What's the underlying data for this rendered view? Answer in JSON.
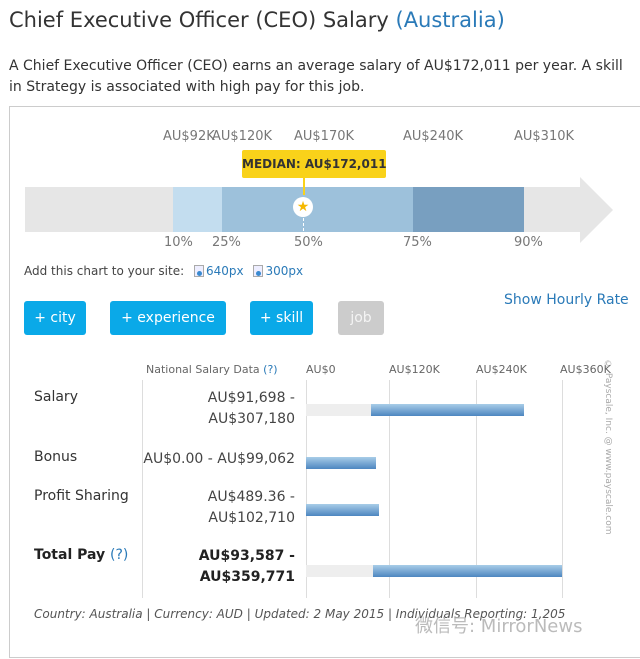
{
  "title": {
    "text": "Chief Executive Officer (CEO) Salary",
    "location": "(Australia)"
  },
  "intro": "A Chief Executive Officer (CEO) earns an average salary of AU$172,011 per year. A skill in Strategy is associated with high pay for this job.",
  "percentile_chart": {
    "top_labels": [
      "AU$92K",
      "AU$120K",
      "AU$170K",
      "AU$240K",
      "AU$310K"
    ],
    "percent_labels": [
      "10%",
      "25%",
      "50%",
      "75%",
      "90%"
    ],
    "median_label": "MEDIAN: AU$172,011",
    "colors": {
      "p10_25": "#c3ddef",
      "p25_75": "#9dc1db",
      "p75_90": "#789fc0",
      "track": "#e6e6e6",
      "median": "#f9d21a"
    }
  },
  "embed": {
    "label": "Add this chart to your site:",
    "links": [
      "640px",
      "300px"
    ]
  },
  "filters": [
    "+ city",
    "+ experience",
    "+ skill",
    "job"
  ],
  "show_hourly": "Show Hourly Rate",
  "table": {
    "header": "National Salary Data",
    "help": "(?)",
    "axis": [
      "AU$0",
      "AU$120K",
      "AU$240K",
      "AU$360K"
    ],
    "rows": [
      {
        "label": "Salary",
        "range1": "AU$91,698 -",
        "range2": "AU$307,180",
        "min": 91698,
        "max": 307180
      },
      {
        "label": "Bonus",
        "range1": "AU$0.00 - AU$99,062",
        "min": 0,
        "max": 99062
      },
      {
        "label": "Profit Sharing",
        "range1": "AU$489.36 -",
        "range2": "AU$102,710",
        "min": 489.36,
        "max": 102710
      },
      {
        "label": "Total Pay",
        "help": "(?)",
        "range1": "AU$93,587 -",
        "range2": "AU$359,771",
        "min": 93587,
        "max": 359771
      }
    ]
  },
  "footer": "Country: Australia | Currency: AUD | Updated: 2 May 2015 | Individuals Reporting: 1,205",
  "copyright": "© Payscale, Inc. @ www.payscale.com",
  "watermark": "微信号: MirrorNews"
}
